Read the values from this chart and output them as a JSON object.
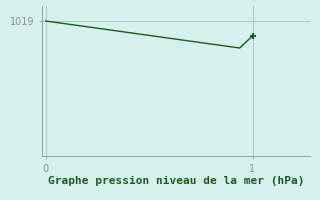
{
  "x": [
    0,
    0.0625,
    0.125,
    0.1875,
    0.25,
    0.3125,
    0.375,
    0.4375,
    0.5,
    0.5625,
    0.625,
    0.6875,
    0.75,
    0.8125,
    0.875,
    0.9375,
    1.0
  ],
  "y": [
    1019.0,
    1018.94,
    1018.88,
    1018.82,
    1018.76,
    1018.7,
    1018.64,
    1018.58,
    1018.52,
    1018.46,
    1018.4,
    1018.34,
    1018.28,
    1018.22,
    1018.16,
    1018.1,
    1018.5
  ],
  "line_color": "#1a5c1a",
  "marker_color": "#1a5c1a",
  "background_color": "#d6f0ee",
  "grid_color": "#aac8c4",
  "axis_color": "#909090",
  "xlabel": "Graphe pression niveau de la mer (hPa)",
  "xlabel_color": "#1a5c1a",
  "xlabel_fontsize": 8,
  "ytick_label": "1019",
  "ytick_value": 1019.0,
  "ylim": [
    1014.5,
    1019.5
  ],
  "xlim": [
    -0.02,
    1.28
  ],
  "xticks": [
    0,
    1
  ],
  "yticks": [
    1019.0
  ]
}
